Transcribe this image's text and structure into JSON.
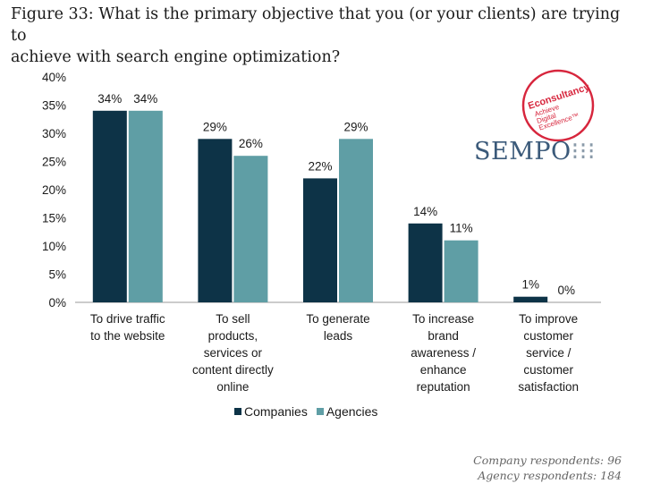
{
  "title": {
    "line1": "Figure 33: What is the primary objective that you (or your clients) are trying to",
    "line2": "achieve with search engine optimization?"
  },
  "colors": {
    "companies": "#0d3347",
    "agencies": "#5f9ea5",
    "econsultancy_red": "#d7263d"
  },
  "logos": {
    "econsultancy": [
      "Econsultancy",
      "Achieve",
      "Digital",
      "Excellence™"
    ],
    "sempo": {
      "part1": "SEMPO",
      "part2": "⁝⁝⁝"
    }
  },
  "legend": {
    "companies": "Companies",
    "agencies": "Agencies"
  },
  "footnote": {
    "line1": "Company respondents: 96",
    "line2": "Agency respondents: 184"
  },
  "chart_data": {
    "type": "bar",
    "ylim": [
      0,
      40
    ],
    "yticks": [
      "0%",
      "5%",
      "10%",
      "15%",
      "20%",
      "25%",
      "30%",
      "35%",
      "40%"
    ],
    "categories": [
      [
        "To drive traffic",
        "to the website"
      ],
      [
        "To sell",
        "products,",
        "services or",
        "content directly",
        "online"
      ],
      [
        "To generate",
        "leads"
      ],
      [
        "To increase",
        "brand",
        "awareness /",
        "enhance",
        "reputation"
      ],
      [
        "To improve",
        "customer",
        "service /",
        "customer",
        "satisfaction"
      ]
    ],
    "series": [
      {
        "name": "Companies",
        "values": [
          34,
          29,
          22,
          14,
          1
        ],
        "labels": [
          "34%",
          "29%",
          "22%",
          "14%",
          "1%"
        ]
      },
      {
        "name": "Agencies",
        "values": [
          34,
          26,
          29,
          11,
          0
        ],
        "labels": [
          "34%",
          "26%",
          "29%",
          "11%",
          "0%"
        ]
      }
    ],
    "legend_position": "bottom",
    "grid": false
  }
}
